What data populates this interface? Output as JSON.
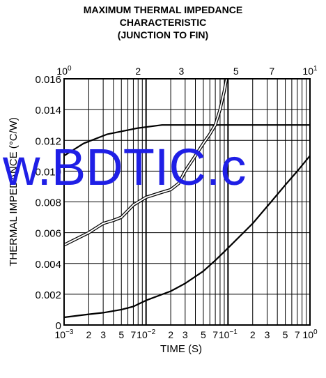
{
  "chart_data": {
    "type": "line",
    "title_lines": [
      "MAXIMUM THERMAL IMPEDANCE",
      "CHARACTERISTIC",
      "(JUNCTION TO FIN)"
    ],
    "xlabel": "TIME  (S)",
    "ylabel": "THERMAL IMPEDANCE  (°C/W)",
    "watermark": "w.BDTIC.c",
    "x_scale": "log",
    "bottom_axis": {
      "range": [
        0.001,
        1
      ],
      "decades": [
        {
          "base": "10",
          "exp": "−3",
          "value": 0.001
        },
        {
          "base": "10",
          "exp": "−2",
          "value": 0.01
        },
        {
          "base": "10",
          "exp": "−1",
          "value": 0.1
        },
        {
          "base": "10",
          "exp": "0",
          "value": 1
        }
      ],
      "minor_labels": [
        "2",
        "3",
        "5",
        "7"
      ]
    },
    "top_axis": {
      "range": [
        1,
        10
      ],
      "decades": [
        {
          "base": "10",
          "exp": "0",
          "value": 1
        },
        {
          "base": "10",
          "exp": "1",
          "value": 10
        }
      ],
      "minor_labels": [
        "2",
        "3",
        "5",
        "7"
      ]
    },
    "y_axis": {
      "range": [
        0,
        0.016
      ],
      "ticks": [
        0,
        0.002,
        0.004,
        0.006,
        0.008,
        0.01,
        0.012,
        0.014,
        0.016
      ],
      "tick_labels": [
        "0",
        "0.002",
        "0.004",
        "0.006",
        "0.008",
        "0.010",
        "0.012",
        "0.014",
        "0.016"
      ]
    },
    "grid": true,
    "series": [
      {
        "axis": "bottom",
        "style": "solid",
        "x": [
          0.001,
          0.002,
          0.003,
          0.005,
          0.007,
          0.01,
          0.02,
          0.03,
          0.05,
          0.07,
          0.1,
          0.2,
          0.3,
          0.5,
          0.7,
          1
        ],
        "y": [
          0.0005,
          0.0007,
          0.0008,
          0.001,
          0.0012,
          0.0016,
          0.0022,
          0.0027,
          0.0035,
          0.0042,
          0.005,
          0.0066,
          0.0077,
          0.0091,
          0.01,
          0.011
        ]
      },
      {
        "axis": "top",
        "style": "solid",
        "x": [
          1,
          1.2,
          1.5,
          2,
          2.5,
          3,
          4,
          5,
          7,
          10
        ],
        "y": [
          0.011,
          0.0118,
          0.0124,
          0.0128,
          0.013,
          0.013,
          0.013,
          0.013,
          0.013,
          0.013
        ]
      },
      {
        "axis": "bottom",
        "style": "double",
        "x": [
          0.001,
          0.002,
          0.003,
          0.004,
          0.005,
          0.007,
          0.01,
          0.015,
          0.02,
          0.025,
          0.03,
          0.04,
          0.05,
          0.06,
          0.07,
          0.08,
          0.09,
          0.1
        ],
        "y": [
          0.0052,
          0.006,
          0.0066,
          0.0068,
          0.007,
          0.0078,
          0.0083,
          0.0086,
          0.0088,
          0.0092,
          0.01,
          0.011,
          0.0118,
          0.0124,
          0.013,
          0.014,
          0.0152,
          0.0165
        ]
      }
    ],
    "colors": {
      "line": "#000000",
      "grid": "#000000",
      "watermark": "#1f1fe6",
      "background": "#ffffff"
    }
  }
}
